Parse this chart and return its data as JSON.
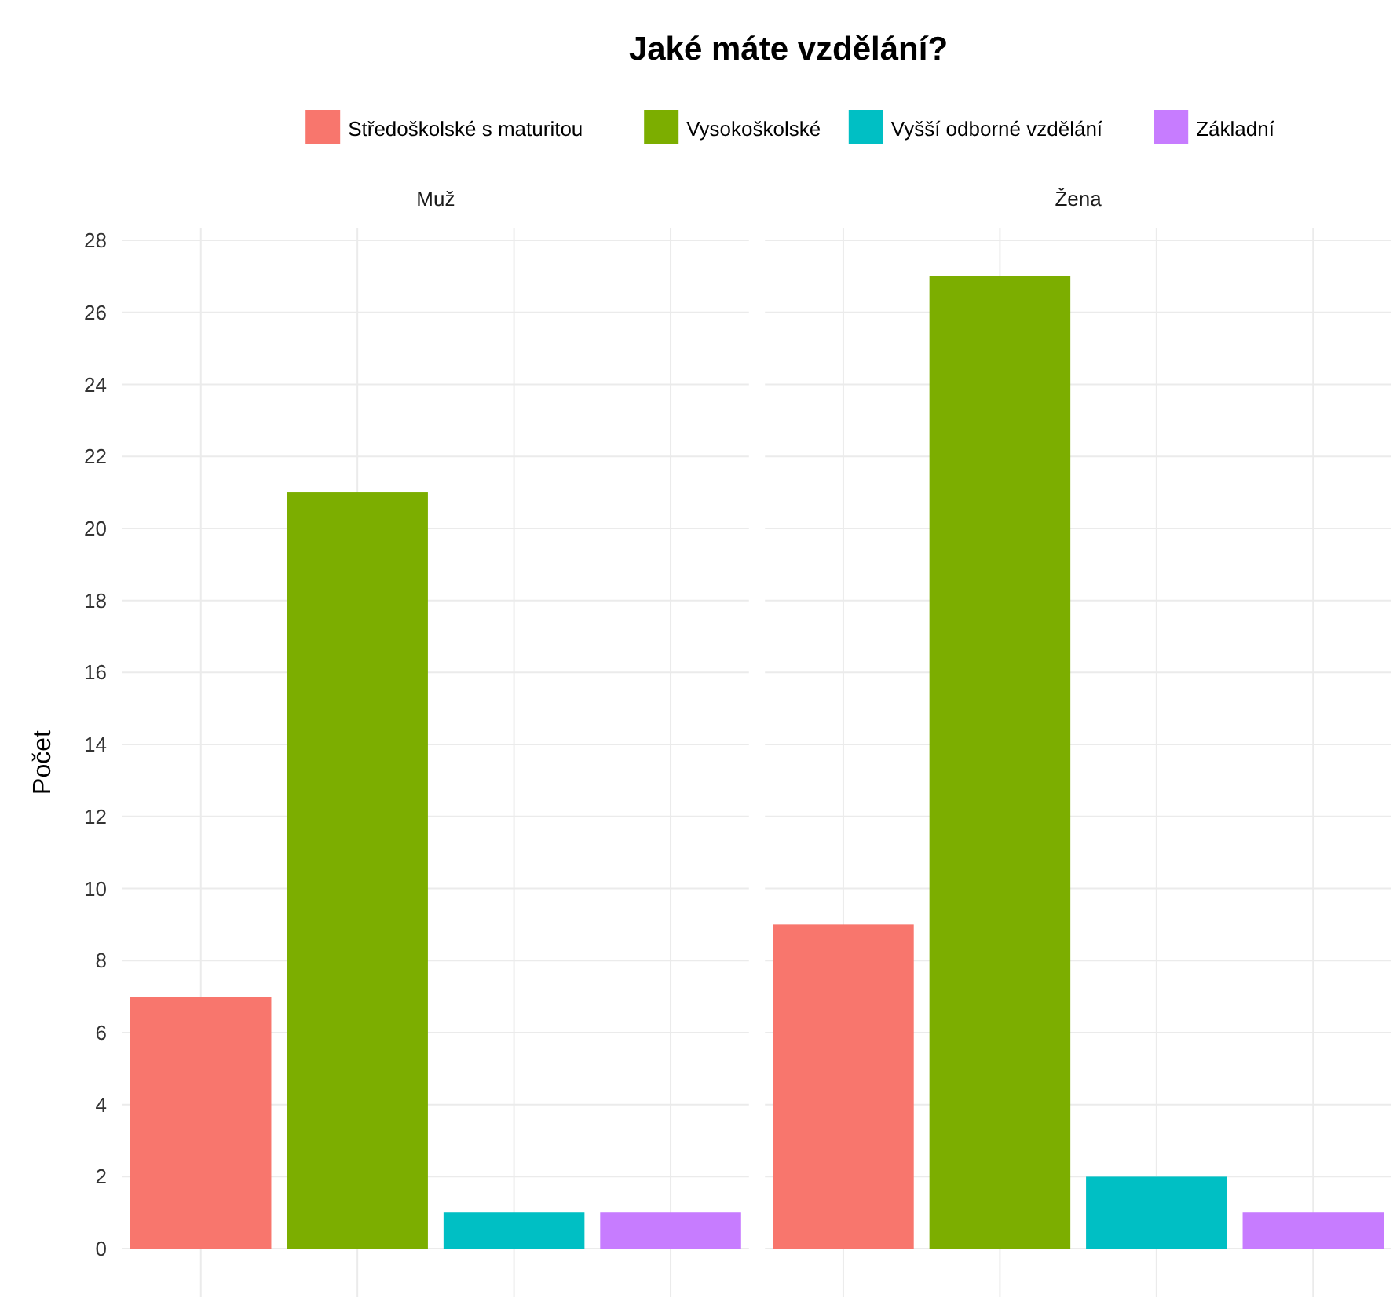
{
  "chart_data": {
    "type": "bar",
    "title": "Jaké máte vzdělání?",
    "ylabel": "Počet",
    "categories": [
      "Muž",
      "Žena"
    ],
    "legend": "top",
    "grid": true,
    "ylim": [
      -1.35,
      28.35
    ],
    "yticks": [
      0,
      2,
      4,
      6,
      8,
      10,
      12,
      14,
      16,
      18,
      20,
      22,
      24,
      26,
      28
    ],
    "series": [
      {
        "name": "Středoškolské s maturitou",
        "color": "#f8766d",
        "values": [
          7,
          9
        ]
      },
      {
        "name": "Vysokoškolské",
        "color": "#7cae00",
        "values": [
          21,
          27
        ]
      },
      {
        "name": "Vyšší odborné vzdělání",
        "color": "#00bfc4",
        "values": [
          1,
          2
        ]
      },
      {
        "name": "Základní",
        "color": "#c77cff",
        "values": [
          1,
          1
        ]
      }
    ]
  }
}
